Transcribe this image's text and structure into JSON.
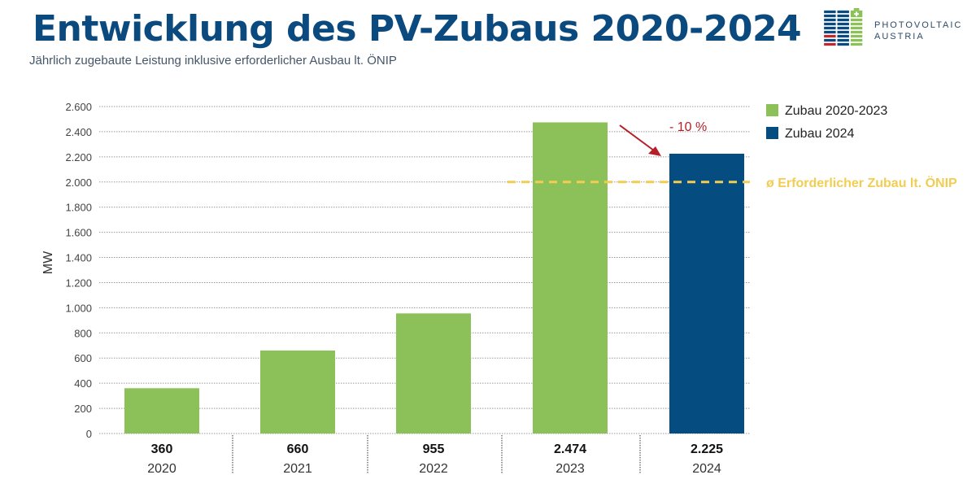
{
  "header": {
    "title": "Entwicklung des PV-Zubaus 2020-2024",
    "subtitle": "Jährlich zugebaute Leistung inklusive erforderlicher Ausbau lt. ÖNIP",
    "logo_text": [
      "PHOTOVOLTAIC",
      "AUSTRIA"
    ]
  },
  "colors": {
    "title": "#0b4a7f",
    "green": "#8cc058",
    "navy": "#054c80",
    "goal": "#f2cd52",
    "arrow": "#b51f27",
    "logo_red": "#c0272d"
  },
  "chart_data": {
    "type": "bar",
    "title": "Entwicklung des PV-Zubaus 2020-2024",
    "xlabel": "",
    "ylabel": "MW",
    "ylim": [
      0,
      2600
    ],
    "yticks": [
      0,
      200,
      400,
      600,
      800,
      1000,
      1200,
      1400,
      1600,
      1800,
      2000,
      2200,
      2400,
      2600
    ],
    "ytick_labels": [
      "0",
      "200",
      "400",
      "600",
      "800",
      "1.000",
      "1.200",
      "1.400",
      "1.600",
      "1.800",
      "2.000",
      "2.200",
      "2.400",
      "2.600"
    ],
    "grid": true,
    "categories": [
      "2020",
      "2021",
      "2022",
      "2023",
      "2024"
    ],
    "values": [
      360,
      660,
      955,
      2474,
      2225
    ],
    "value_labels": [
      "360",
      "660",
      "955",
      "2.474",
      "2.225"
    ],
    "series_of_bar": [
      "Zubau 2020-2023",
      "Zubau 2020-2023",
      "Zubau 2020-2023",
      "Zubau 2020-2023",
      "Zubau 2024"
    ],
    "legend": [
      {
        "label": "Zubau 2020-2023",
        "color": "#8cc058"
      },
      {
        "label": "Zubau 2024",
        "color": "#054c80"
      }
    ],
    "legend_position": "right",
    "reference_line": {
      "value": 2000,
      "label": "ø Erforderlicher Zubau lt. ÖNIP",
      "style": "dashed"
    },
    "annotation": {
      "text": "- 10 %",
      "from": "2023",
      "to": "2024"
    }
  }
}
